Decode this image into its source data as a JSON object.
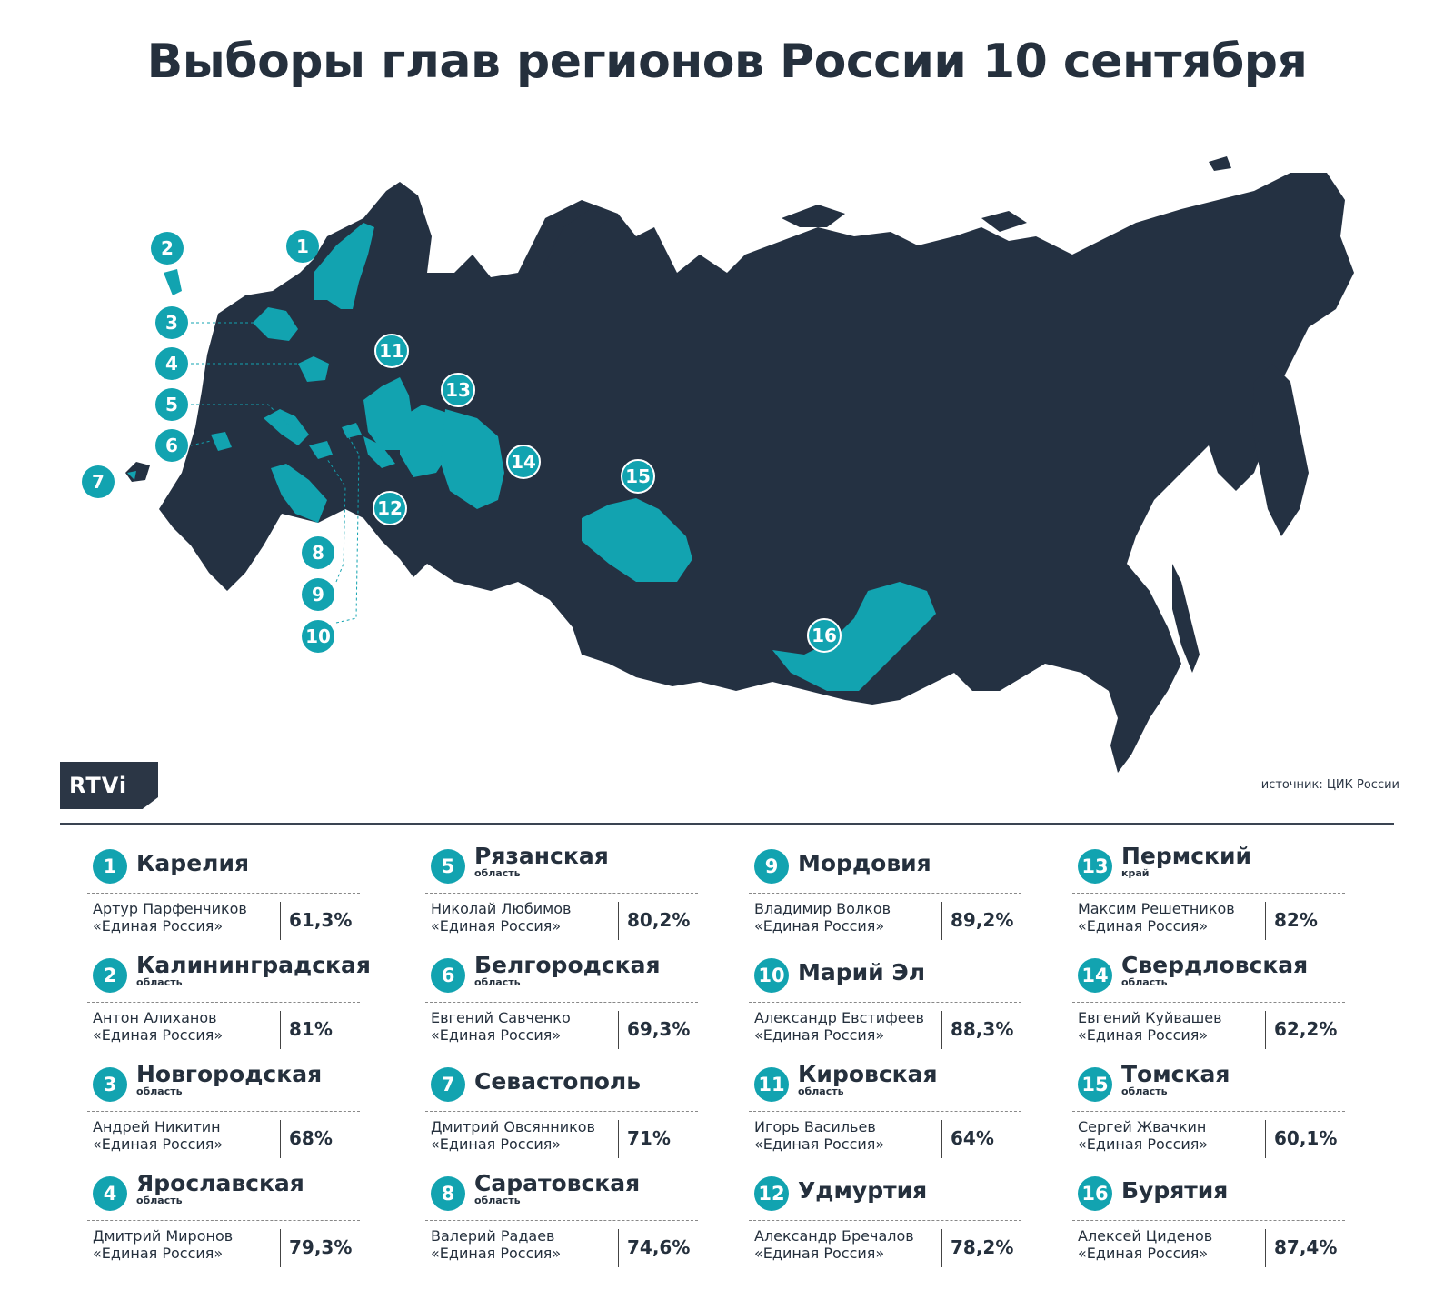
{
  "title": "Выборы глав регионов России 10 сентября",
  "logo": "RTVi",
  "source": "источник: ЦИК России",
  "colors": {
    "land": "#243142",
    "highlight": "#12a3b0",
    "text": "#25303d"
  },
  "map_labels": [
    "1",
    "2",
    "3",
    "4",
    "5",
    "6",
    "7",
    "8",
    "9",
    "10",
    "11",
    "12",
    "13",
    "14",
    "15",
    "16"
  ],
  "regions": [
    {
      "num": "1",
      "name": "Карелия",
      "sub": "",
      "person": "Артур Парфенчиков",
      "party": "«Единая Россия»",
      "pct": "61,3%"
    },
    {
      "num": "2",
      "name": "Калининградская",
      "sub": "область",
      "person": "Антон Алиханов",
      "party": "«Единая Россия»",
      "pct": "81%"
    },
    {
      "num": "3",
      "name": "Новгородская",
      "sub": "область",
      "person": "Андрей Никитин",
      "party": "«Единая Россия»",
      "pct": "68%"
    },
    {
      "num": "4",
      "name": "Ярославская",
      "sub": "область",
      "person": "Дмитрий Миронов",
      "party": "«Единая Россия»",
      "pct": "79,3%"
    },
    {
      "num": "5",
      "name": "Рязанская",
      "sub": "область",
      "person": "Николай Любимов",
      "party": "«Единая Россия»",
      "pct": "80,2%"
    },
    {
      "num": "6",
      "name": "Белгородская",
      "sub": "область",
      "person": "Евгений Савченко",
      "party": "«Единая Россия»",
      "pct": "69,3%"
    },
    {
      "num": "7",
      "name": "Севастополь",
      "sub": "",
      "person": "Дмитрий Овсянников",
      "party": "«Единая Россия»",
      "pct": "71%"
    },
    {
      "num": "8",
      "name": "Саратовская",
      "sub": "область",
      "person": "Валерий Радаев",
      "party": "«Единая Россия»",
      "pct": "74,6%"
    },
    {
      "num": "9",
      "name": "Мордовия",
      "sub": "",
      "person": "Владимир Волков",
      "party": "«Единая Россия»",
      "pct": "89,2%"
    },
    {
      "num": "10",
      "name": "Марий Эл",
      "sub": "",
      "person": "Александр Евстифеев",
      "party": "«Единая Россия»",
      "pct": "88,3%"
    },
    {
      "num": "11",
      "name": "Кировская",
      "sub": "область",
      "person": "Игорь Васильев",
      "party": "«Единая Россия»",
      "pct": "64%"
    },
    {
      "num": "12",
      "name": "Удмуртия",
      "sub": "",
      "person": "Александр Бречалов",
      "party": "«Единая Россия»",
      "pct": "78,2%"
    },
    {
      "num": "13",
      "name": "Пермский",
      "sub": "край",
      "person": "Максим Решетников",
      "party": "«Единая Россия»",
      "pct": "82%"
    },
    {
      "num": "14",
      "name": "Свердловская",
      "sub": "область",
      "person": "Евгений Куйвашев",
      "party": "«Единая Россия»",
      "pct": "62,2%"
    },
    {
      "num": "15",
      "name": "Томская",
      "sub": "область",
      "person": "Сергей Жвачкин",
      "party": "«Единая Россия»",
      "pct": "60,1%"
    },
    {
      "num": "16",
      "name": "Бурятия",
      "sub": "",
      "person": "Алексей Циденов",
      "party": "«Единая Россия»",
      "pct": "87,4%"
    }
  ]
}
